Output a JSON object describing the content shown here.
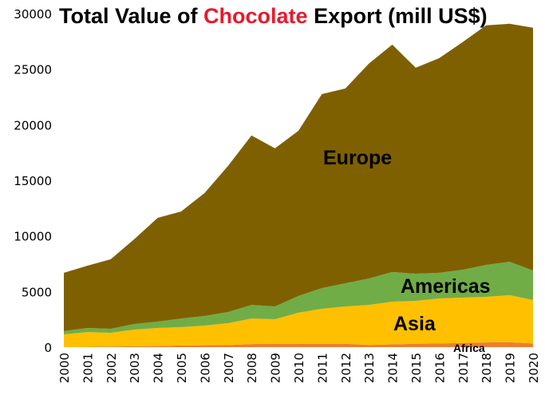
{
  "chart_data": {
    "type": "area",
    "stacked": true,
    "title": {
      "prefix": "Total Value of ",
      "highlight": "Chocolate",
      "suffix": " Export (mill US$)"
    },
    "title_highlight_color": "#e8192c",
    "xlabel": "",
    "ylabel": "",
    "ylim": [
      0,
      30000
    ],
    "yticks": [
      "0",
      "5000",
      "10000",
      "15000",
      "20000",
      "25000",
      "30000"
    ],
    "x": [
      "2000",
      "2001",
      "2002",
      "2003",
      "2004",
      "2005",
      "2006",
      "2007",
      "2008",
      "2009",
      "2010",
      "2011",
      "2012",
      "2013",
      "2014",
      "2015",
      "2016",
      "2017",
      "2018",
      "2019",
      "2020"
    ],
    "grid": false,
    "series": [
      {
        "name": "Africa",
        "color": "#ed7d31",
        "values": [
          20,
          30,
          60,
          80,
          100,
          150,
          170,
          180,
          280,
          300,
          300,
          300,
          300,
          200,
          250,
          300,
          330,
          380,
          420,
          440,
          330
        ]
      },
      {
        "name": "Asia",
        "color": "#ffc000",
        "values": [
          1130,
          1330,
          1230,
          1500,
          1620,
          1650,
          1770,
          1970,
          2300,
          2210,
          2790,
          3150,
          3360,
          3600,
          3840,
          3860,
          4050,
          4070,
          4100,
          4230,
          3910
        ]
      },
      {
        "name": "Americas",
        "color": "#70ad47",
        "values": [
          290,
          360,
          360,
          500,
          580,
          780,
          860,
          1010,
          1220,
          1150,
          1510,
          1860,
          2080,
          2370,
          2660,
          2440,
          2300,
          2510,
          2870,
          3010,
          2650
        ]
      },
      {
        "name": "Europe",
        "color": "#7f6000",
        "values": [
          5240,
          5600,
          6250,
          7620,
          9330,
          9620,
          11060,
          13140,
          15230,
          14220,
          14860,
          17450,
          17520,
          19320,
          20460,
          18530,
          19310,
          20470,
          21550,
          21400,
          21830
        ]
      }
    ]
  }
}
